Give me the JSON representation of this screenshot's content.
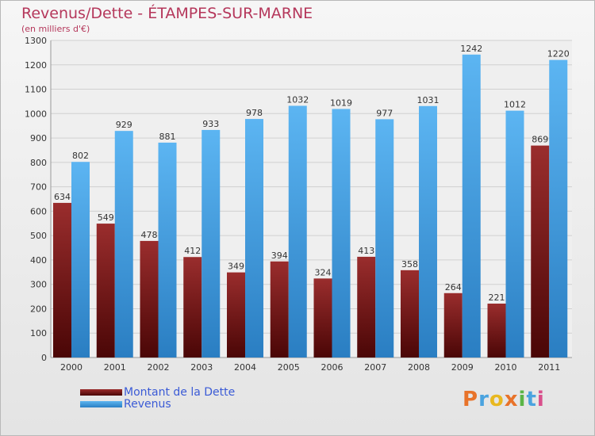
{
  "title": "Revenus/Dette - ÉTAMPES-SUR-MARNE",
  "subtitle": "(en milliers d'€)",
  "colors": {
    "dette": "#7a1d1d",
    "revenus": "#3d9fe6",
    "title": "#b5375b",
    "legend_text": "#3b5bd6"
  },
  "chart_data": {
    "type": "bar",
    "categories": [
      "2000",
      "2001",
      "2002",
      "2003",
      "2004",
      "2005",
      "2006",
      "2007",
      "2008",
      "2009",
      "2010",
      "2011"
    ],
    "series": [
      {
        "name": "Montant de la Dette",
        "values": [
          634,
          549,
          478,
          412,
          349,
          394,
          324,
          413,
          358,
          264,
          221,
          869
        ]
      },
      {
        "name": "Revenus",
        "values": [
          802,
          929,
          881,
          933,
          978,
          1032,
          1019,
          977,
          1031,
          1242,
          1012,
          1220
        ]
      }
    ],
    "ylim": [
      0,
      1300
    ],
    "yticks": [
      0,
      100,
      200,
      300,
      400,
      500,
      600,
      700,
      800,
      900,
      1000,
      1100,
      1200,
      1300
    ],
    "grid": true,
    "legend_position": "bottom-left"
  },
  "legend": [
    {
      "label": "Montant de la Dette"
    },
    {
      "label": "Revenus"
    }
  ],
  "logo": {
    "text": "Proxiti",
    "letters": [
      "P",
      "r",
      "o",
      "x",
      "i",
      "t",
      "i"
    ],
    "letter_colors": [
      "#e8732a",
      "#4aa3df",
      "#e8b820",
      "#e8732a",
      "#5bb547",
      "#4aa3df",
      "#d94f8c"
    ]
  }
}
